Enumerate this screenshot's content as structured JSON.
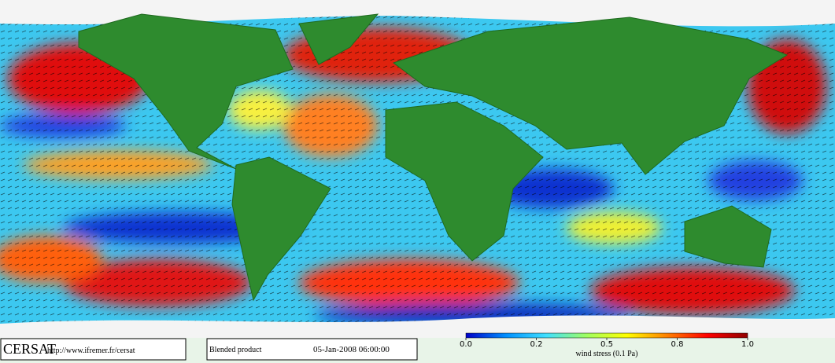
{
  "header": {
    "logo": "CERSAT",
    "url": "http://www.ifremer.fr/cersat"
  },
  "product": {
    "name": "Blended product",
    "datetime": "05-Jan-2008 06:00:00"
  },
  "colorbar": {
    "label": "wind stress (0.1 Pa)",
    "ticks": [
      {
        "value": 0,
        "label": "0.0"
      },
      0.2,
      0.5,
      0.8,
      {
        "value": 1,
        "label": "1.0"
      }
    ],
    "colors": [
      "#0000c8",
      "#0090ff",
      "#40e0ff",
      "#a0ff60",
      "#ffff00",
      "#ff8000",
      "#ff0000",
      "#900000"
    ]
  }
}
